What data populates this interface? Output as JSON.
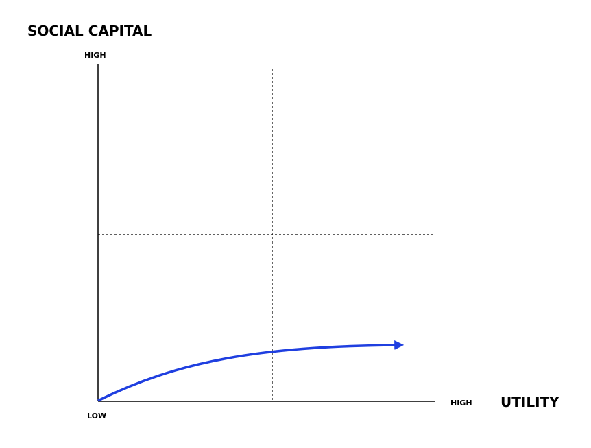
{
  "y_axis": {
    "title": "SOCIAL CAPITAL",
    "high_label": "HIGH"
  },
  "x_axis": {
    "title": "UTILITY",
    "high_label": "HIGH"
  },
  "origin_label": "LOW"
}
